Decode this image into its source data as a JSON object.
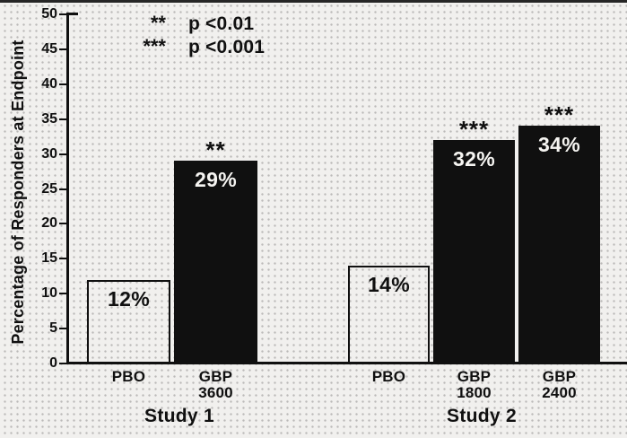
{
  "chart_data": {
    "type": "bar",
    "title": "",
    "xlabel": "",
    "ylabel": "Percentage of Responders at Endpoint",
    "ylim": [
      0,
      50
    ],
    "ytick_step": 5,
    "yticks": [
      0,
      5,
      10,
      15,
      20,
      25,
      30,
      35,
      40,
      45,
      50
    ],
    "grid": "dotted paper texture, no gridlines",
    "legend_position": "top-left-inside",
    "legend": {
      "rows": [
        {
          "symbol": "**",
          "text": "p <0.01"
        },
        {
          "symbol": "***",
          "text": "p <0.001"
        }
      ]
    },
    "groups": [
      {
        "title": "Study 1",
        "bars": [
          {
            "category_lines": [
              "PBO"
            ],
            "value": 12,
            "label": "12%",
            "fill": "white",
            "significance": ""
          },
          {
            "category_lines": [
              "GBP",
              "3600"
            ],
            "value": 29,
            "label": "29%",
            "fill": "black",
            "significance": "**"
          }
        ]
      },
      {
        "title": "Study 2",
        "bars": [
          {
            "category_lines": [
              "PBO"
            ],
            "value": 14,
            "label": "14%",
            "fill": "white",
            "significance": ""
          },
          {
            "category_lines": [
              "GBP",
              "1800"
            ],
            "value": 32,
            "label": "32%",
            "fill": "black",
            "significance": "***"
          },
          {
            "category_lines": [
              "GBP",
              "2400"
            ],
            "value": 34,
            "label": "34%",
            "fill": "black",
            "significance": "***"
          }
        ]
      }
    ]
  },
  "colors": {
    "ink": "#101010",
    "paper": "#f1f0ee",
    "bar_black": "#101010",
    "bar_white_fill": "transparent",
    "value_text_on_black": "#f6f5f2"
  }
}
